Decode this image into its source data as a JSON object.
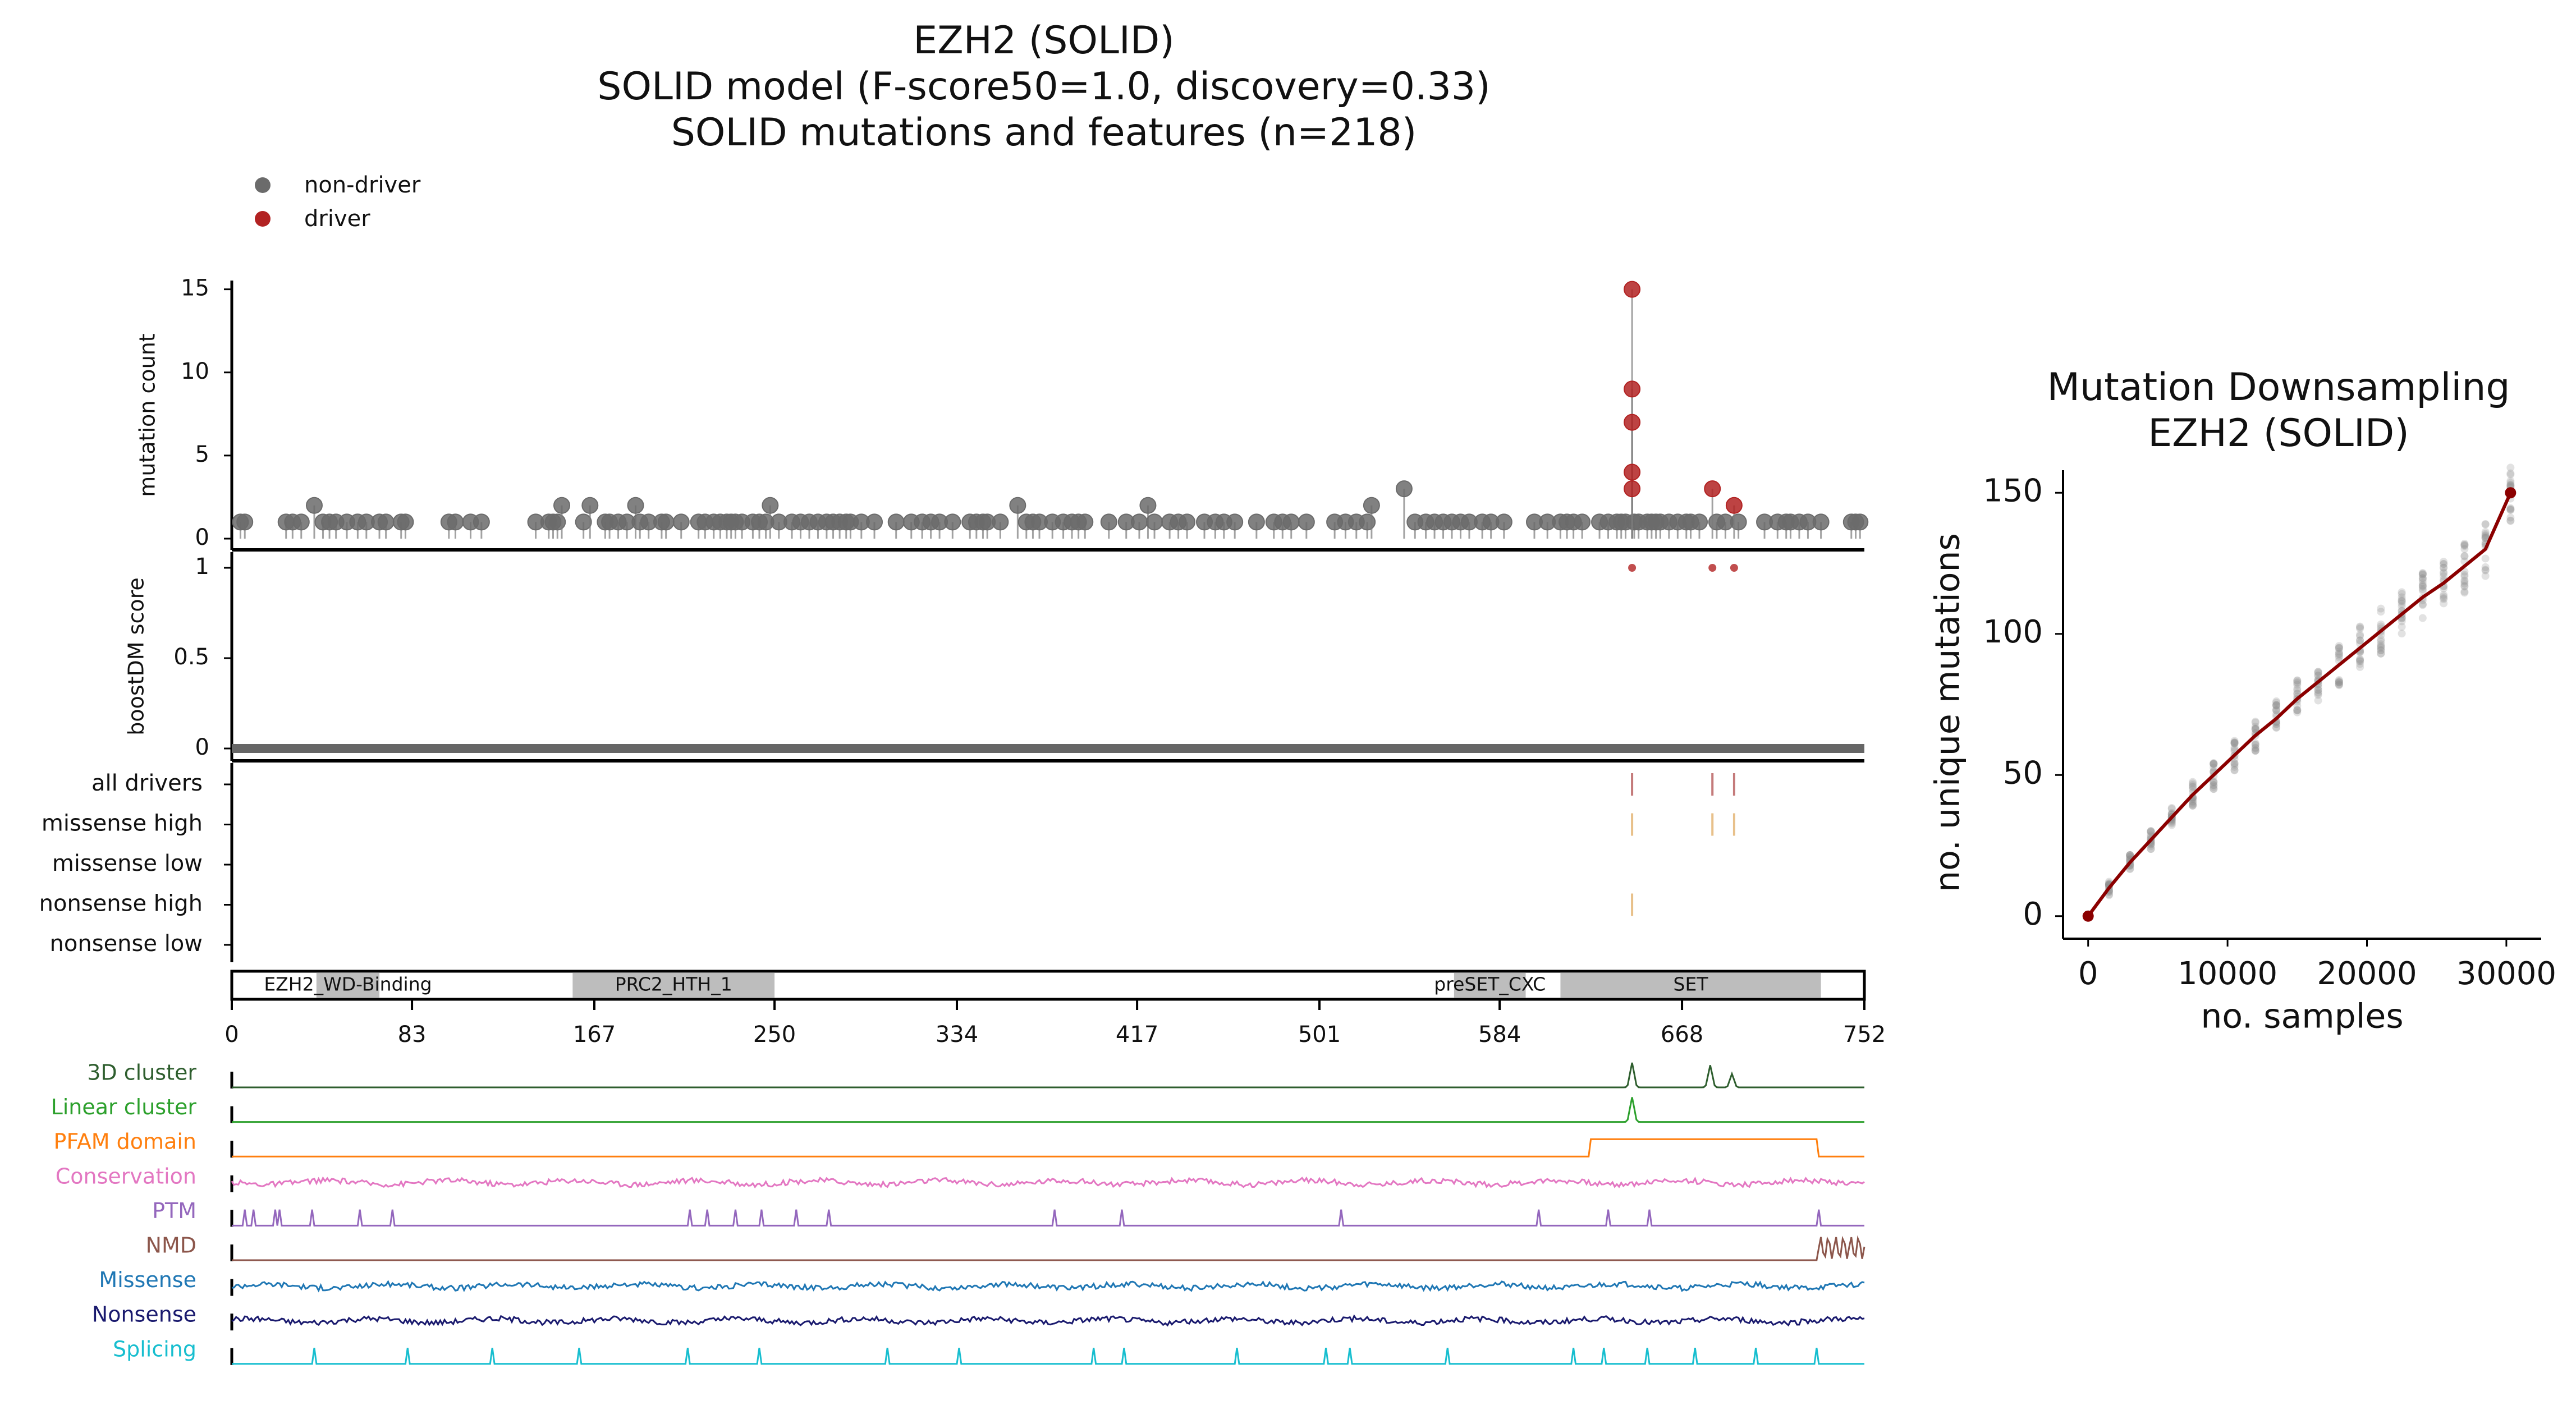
{
  "figure": {
    "title_lines": [
      "EZH2 (SOLID)",
      "SOLID model (F-score50=1.0, discovery=0.33)",
      "SOLID mutations and features (n=218)"
    ],
    "legend": [
      {
        "label": "non-driver",
        "color": "#6b6b6b"
      },
      {
        "label": "driver",
        "color": "#b22222"
      }
    ]
  },
  "chart_data": [
    {
      "type": "scatter",
      "panel": "mutation-lollipop",
      "ylabel": "mutation count",
      "ylim": [
        0,
        16
      ],
      "yticks": [
        0,
        5,
        10,
        15
      ],
      "xlim": [
        0,
        752
      ],
      "series": [
        {
          "name": "non-driver",
          "color": "#6b6b6b",
          "x": [
            4,
            6,
            25,
            28,
            32,
            38,
            42,
            45,
            48,
            53,
            58,
            62,
            68,
            71,
            78,
            80,
            100,
            103,
            110,
            115,
            140,
            146,
            148,
            150,
            152,
            162,
            165,
            172,
            174,
            178,
            182,
            186,
            188,
            192,
            198,
            200,
            207,
            215,
            218,
            222,
            225,
            228,
            230,
            232,
            235,
            240,
            243,
            246,
            248,
            252,
            258,
            262,
            266,
            270,
            274,
            277,
            280,
            283,
            285,
            290,
            296,
            306,
            313,
            318,
            322,
            326,
            332,
            340,
            343,
            346,
            348,
            354,
            362,
            366,
            369,
            372,
            378,
            383,
            387,
            390,
            393,
            404,
            412,
            418,
            422,
            425,
            432,
            436,
            440,
            448,
            453,
            457,
            462,
            472,
            480,
            484,
            488,
            495,
            508,
            513,
            518,
            523,
            525,
            540,
            545,
            550,
            554,
            558,
            562,
            566,
            570,
            576,
            580,
            586,
            600,
            606,
            612,
            615,
            618,
            622,
            630,
            634,
            638,
            640,
            642,
            646,
            648,
            652,
            654,
            656,
            658,
            662,
            666,
            670,
            672,
            676,
            684,
            688,
            694,
            706,
            712,
            716,
            718,
            722,
            726,
            732,
            746,
            748,
            750
          ],
          "y": [
            1,
            1,
            1,
            1,
            1,
            2,
            1,
            1,
            1,
            1,
            1,
            1,
            1,
            1,
            1,
            1,
            1,
            1,
            1,
            1,
            1,
            1,
            1,
            1,
            2,
            1,
            2,
            1,
            1,
            1,
            1,
            2,
            1,
            1,
            1,
            1,
            1,
            1,
            1,
            1,
            1,
            1,
            1,
            1,
            1,
            1,
            1,
            1,
            2,
            1,
            1,
            1,
            1,
            1,
            1,
            1,
            1,
            1,
            1,
            1,
            1,
            1,
            1,
            1,
            1,
            1,
            1,
            1,
            1,
            1,
            1,
            1,
            2,
            1,
            1,
            1,
            1,
            1,
            1,
            1,
            1,
            1,
            1,
            1,
            2,
            1,
            1,
            1,
            1,
            1,
            1,
            1,
            1,
            1,
            1,
            1,
            1,
            1,
            1,
            1,
            1,
            1,
            2,
            3,
            1,
            1,
            1,
            1,
            1,
            1,
            1,
            1,
            1,
            1,
            1,
            1,
            1,
            1,
            1,
            1,
            1,
            1,
            1,
            1,
            1,
            1,
            1,
            1,
            1,
            1,
            1,
            1,
            1,
            1,
            1,
            1,
            1,
            1,
            1,
            1,
            1,
            1,
            1,
            1,
            1,
            1,
            1,
            1,
            1
          ]
        },
        {
          "name": "driver",
          "color": "#b22222",
          "x": [
            645,
            645,
            645,
            645,
            645,
            682,
            692
          ],
          "y": [
            15,
            9,
            7,
            4,
            3,
            3,
            2
          ]
        }
      ]
    },
    {
      "type": "scatter",
      "panel": "boostdm-score",
      "ylabel": "boostDM score",
      "ylim": [
        0,
        1
      ],
      "yticks": [
        "0",
        "0.5",
        "1"
      ],
      "xlim": [
        0,
        752
      ],
      "baseline_score": 0,
      "series": [
        {
          "name": "driver",
          "color": "#b22222",
          "x": [
            645,
            682,
            692
          ],
          "y": [
            1,
            1,
            1
          ]
        }
      ]
    },
    {
      "type": "table",
      "panel": "driver-categories",
      "rows": [
        "all drivers",
        "missense high",
        "missense low",
        "nonsense high",
        "nonsense low"
      ],
      "marks": [
        {
          "row": "all drivers",
          "x": [
            645,
            682,
            692
          ],
          "color": "#c47a7a"
        },
        {
          "row": "missense high",
          "x": [
            645,
            682,
            692
          ],
          "color": "#e8c08a"
        },
        {
          "row": "nonsense high",
          "x": [
            645
          ],
          "color": "#e8c08a"
        }
      ]
    },
    {
      "type": "bar",
      "panel": "pfam-domains",
      "xlim": [
        0,
        752
      ],
      "xticks": [
        0,
        83,
        167,
        250,
        334,
        417,
        501,
        584,
        668,
        752
      ],
      "domains": [
        {
          "name": "EZH2_WD-Binding",
          "start": 39,
          "end": 68
        },
        {
          "name": "PRC2_HTH_1",
          "start": 157,
          "end": 250
        },
        {
          "name": "preSET_CXC",
          "start": 563,
          "end": 596
        },
        {
          "name": "SET",
          "start": 612,
          "end": 732
        }
      ]
    },
    {
      "type": "line",
      "panel": "feature-tracks",
      "xlim": [
        0,
        752
      ],
      "tracks": [
        {
          "name": "3D cluster",
          "color": "#2e5e2e",
          "kind": "peaks",
          "peaks": [
            [
              645,
              1.0
            ],
            [
              681,
              0.9
            ],
            [
              691,
              0.55
            ]
          ]
        },
        {
          "name": "Linear cluster",
          "color": "#2ca02c",
          "kind": "peaks",
          "peaks": [
            [
              645,
              1.0
            ]
          ]
        },
        {
          "name": "PFAM domain",
          "color": "#ff7f0e",
          "kind": "step",
          "on": [
            [
              626,
              730
            ]
          ]
        },
        {
          "name": "Conservation",
          "color": "#e377c2",
          "kind": "noise"
        },
        {
          "name": "PTM",
          "color": "#9467bd",
          "kind": "spikes",
          "positions": [
            6,
            10,
            20,
            22,
            37,
            59,
            74,
            211,
            219,
            232,
            244,
            260,
            275,
            379,
            410,
            511,
            602,
            634,
            653,
            731
          ]
        },
        {
          "name": "NMD",
          "color": "#8c564b",
          "kind": "tail",
          "from": 731
        },
        {
          "name": "Missense",
          "color": "#1f77b4",
          "kind": "noise"
        },
        {
          "name": "Nonsense",
          "color": "#1a1a6e",
          "kind": "noise"
        },
        {
          "name": "Splicing",
          "color": "#17becf",
          "kind": "spikes",
          "positions": [
            38,
            81,
            120,
            160,
            210,
            243,
            302,
            335,
            397,
            411,
            463,
            504,
            515,
            560,
            618,
            632,
            652,
            674,
            702,
            730
          ]
        }
      ]
    },
    {
      "type": "scatter",
      "panel": "downsampling",
      "title": "Mutation Downsampling\nEZH2 (SOLID)",
      "xlabel": "no. samples",
      "ylabel": "no. unique mutations",
      "xlim": [
        -1800,
        32500
      ],
      "ylim": [
        -8,
        158
      ],
      "xticks": [
        0,
        10000,
        20000,
        30000
      ],
      "yticks": [
        0,
        50,
        100,
        150
      ],
      "fit_line": {
        "color": "#8b0000",
        "x": [
          0,
          1500,
          3000,
          4500,
          6000,
          7500,
          9000,
          10500,
          12000,
          13500,
          15000,
          16500,
          18000,
          19500,
          21000,
          22500,
          24000,
          25500,
          27000,
          28500,
          30300
        ],
        "y": [
          0,
          10,
          19,
          27,
          35,
          43,
          50,
          57,
          64,
          70,
          77,
          83,
          89,
          95,
          101,
          107,
          113,
          118,
          124,
          130,
          150
        ]
      },
      "sample_points_color": "#8c8c8c"
    }
  ]
}
